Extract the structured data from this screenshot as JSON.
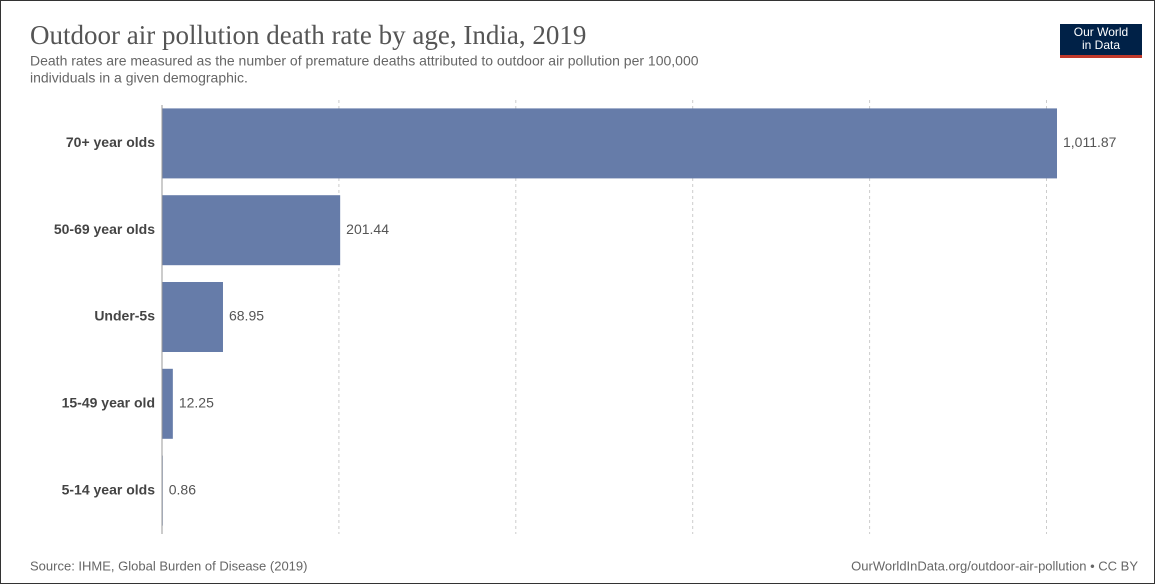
{
  "chart_data": {
    "type": "hbar",
    "title": "Outdoor air pollution death rate by age, India, 2019",
    "subtitle_lines": [
      "Death rates are measured as the number of premature deaths attributed to outdoor air pollution per 100,000",
      "individuals in a given demographic."
    ],
    "categories": [
      "70+ year olds",
      "50-69 year olds",
      "Under-5s",
      "15-49 year old",
      "5-14 year olds"
    ],
    "values": [
      1011.87,
      201.44,
      68.95,
      12.25,
      0.86
    ],
    "value_labels": [
      "1,011.87",
      "201.44",
      "68.95",
      "12.25",
      "0.86"
    ],
    "color": "#667ca9",
    "xlim": [
      0,
      1011.87
    ],
    "xticks": [
      0,
      200,
      400,
      600,
      800,
      1000
    ],
    "grid": true,
    "source": "Source: IHME, Global Burden of Disease (2019)",
    "url": "OurWorldInData.org/outdoor-air-pollution • CC BY",
    "logo_lines": [
      "Our World",
      "in Data"
    ]
  }
}
